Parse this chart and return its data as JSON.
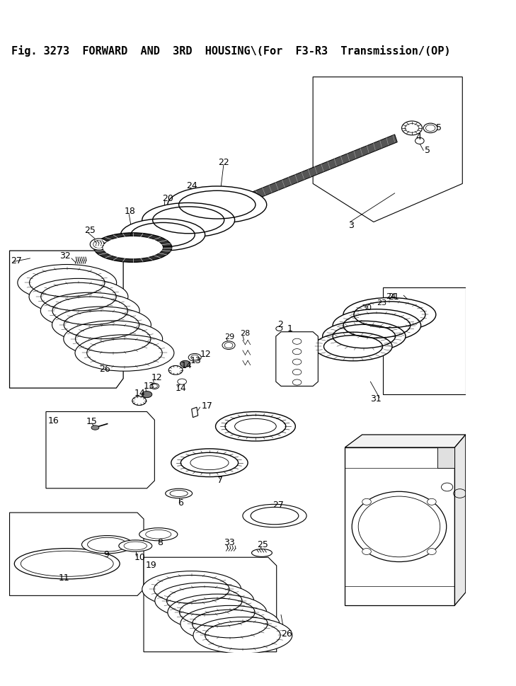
{
  "title": "Fig. 3273  FORWARD  AND  3RD  HOUSING\\(For  F3-R3  Transmission/(OP)",
  "bg_color": "#ffffff",
  "line_color": "#000000"
}
